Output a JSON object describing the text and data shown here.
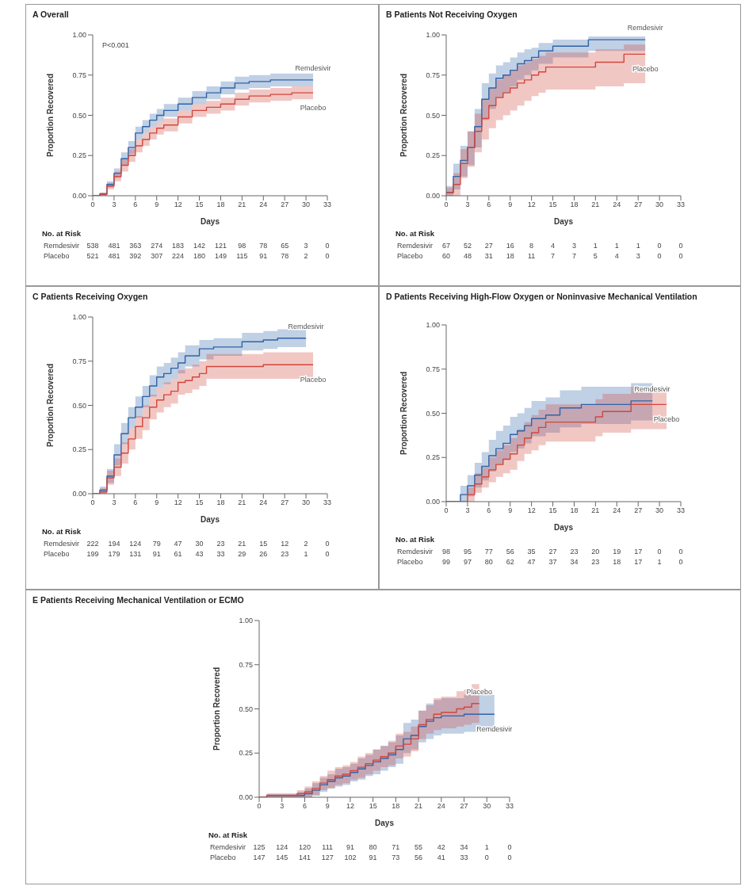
{
  "chart_data": [
    {
      "type": "step",
      "title": "A Overall",
      "xlabel": "Days",
      "ylabel": "Proportion Recovered",
      "xlim": [
        0,
        33
      ],
      "xticks": [
        0,
        3,
        6,
        9,
        12,
        15,
        18,
        21,
        24,
        27,
        30,
        33
      ],
      "ylim": [
        0,
        1
      ],
      "yticks": [
        {
          "value": 0,
          "label": "0.00"
        },
        {
          "value": 0.25,
          "label": "0.25"
        },
        {
          "value": 0.5,
          "label": "0.50"
        },
        {
          "value": 0.75,
          "label": "0.75"
        },
        {
          "value": 1,
          "label": "1.00"
        }
      ],
      "annotations": [
        "P<0.001",
        "No. at Risk",
        "Remdesivir 538 481 363 274 183 142 121 98 78 65 3 0",
        "Placebo 521 481 392 307 224 180 149 115 91 78 2 0"
      ],
      "series": [
        {
          "name": "Remdesivir",
          "color": "#2f63a8",
          "x": [
            0,
            1,
            2,
            3,
            4,
            5,
            6,
            7,
            8,
            9,
            10,
            12,
            14,
            16,
            18,
            20,
            22,
            25,
            28,
            31
          ],
          "values": [
            0,
            0.01,
            0.07,
            0.14,
            0.23,
            0.3,
            0.39,
            0.43,
            0.47,
            0.5,
            0.53,
            0.57,
            0.61,
            0.64,
            0.67,
            0.7,
            0.71,
            0.72,
            0.72,
            0.72
          ],
          "lower": [
            0,
            0,
            0.05,
            0.11,
            0.19,
            0.26,
            0.35,
            0.39,
            0.43,
            0.46,
            0.49,
            0.53,
            0.57,
            0.6,
            0.63,
            0.66,
            0.67,
            0.68,
            0.68,
            0.68
          ],
          "upper": [
            0,
            0.02,
            0.09,
            0.17,
            0.27,
            0.34,
            0.43,
            0.47,
            0.51,
            0.54,
            0.57,
            0.61,
            0.65,
            0.68,
            0.71,
            0.74,
            0.75,
            0.76,
            0.76,
            0.76
          ]
        },
        {
          "name": "Placebo",
          "color": "#d2473c",
          "x": [
            0,
            1,
            2,
            3,
            4,
            5,
            6,
            7,
            8,
            9,
            10,
            12,
            14,
            16,
            18,
            20,
            22,
            25,
            28,
            31
          ],
          "values": [
            0,
            0.01,
            0.06,
            0.12,
            0.19,
            0.25,
            0.31,
            0.35,
            0.39,
            0.42,
            0.44,
            0.49,
            0.53,
            0.55,
            0.57,
            0.6,
            0.62,
            0.63,
            0.64,
            0.64
          ],
          "lower": [
            0,
            0,
            0.04,
            0.09,
            0.15,
            0.21,
            0.27,
            0.31,
            0.35,
            0.38,
            0.4,
            0.45,
            0.49,
            0.51,
            0.53,
            0.56,
            0.58,
            0.59,
            0.6,
            0.6
          ],
          "upper": [
            0,
            0.02,
            0.08,
            0.15,
            0.23,
            0.29,
            0.35,
            0.39,
            0.43,
            0.46,
            0.48,
            0.53,
            0.57,
            0.59,
            0.61,
            0.64,
            0.66,
            0.67,
            0.68,
            0.68
          ]
        }
      ]
    },
    {
      "type": "step",
      "title": "B Patients Not Receiving Oxygen",
      "xlabel": "Days",
      "ylabel": "Proportion Recovered",
      "xlim": [
        0,
        33
      ],
      "xticks": [
        0,
        3,
        6,
        9,
        12,
        15,
        18,
        21,
        24,
        27,
        30,
        33
      ],
      "ylim": [
        0,
        1
      ],
      "yticks": [
        {
          "value": 0,
          "label": "0.00"
        },
        {
          "value": 0.25,
          "label": "0.25"
        },
        {
          "value": 0.5,
          "label": "0.50"
        },
        {
          "value": 0.75,
          "label": "0.75"
        },
        {
          "value": 1,
          "label": "1.00"
        }
      ],
      "annotations": [
        "No. at Risk",
        "Remdesivir 67 52 27 16 8 4 3 1 1 1 0 0",
        "Placebo 60 48 31 18 11 7 7 5 4 3 0 0"
      ],
      "series": [
        {
          "name": "Remdesivir",
          "color": "#2f63a8",
          "x": [
            0,
            1,
            2,
            3,
            4,
            5,
            6,
            7,
            8,
            9,
            10,
            11,
            12,
            13,
            15,
            20,
            28
          ],
          "values": [
            0.02,
            0.12,
            0.22,
            0.3,
            0.43,
            0.6,
            0.67,
            0.73,
            0.75,
            0.78,
            0.82,
            0.84,
            0.86,
            0.9,
            0.93,
            0.97,
            0.97
          ],
          "lower": [
            0,
            0.04,
            0.12,
            0.19,
            0.3,
            0.47,
            0.54,
            0.61,
            0.64,
            0.68,
            0.72,
            0.75,
            0.78,
            0.82,
            0.86,
            0.9,
            0.9
          ],
          "upper": [
            0.06,
            0.2,
            0.31,
            0.4,
            0.54,
            0.7,
            0.76,
            0.81,
            0.83,
            0.86,
            0.89,
            0.91,
            0.92,
            0.95,
            0.97,
            0.99,
            0.99
          ]
        },
        {
          "name": "Placebo",
          "color": "#d2473c",
          "x": [
            0,
            1,
            2,
            3,
            4,
            5,
            6,
            7,
            8,
            9,
            10,
            11,
            12,
            13,
            14,
            21,
            25,
            28
          ],
          "values": [
            0.02,
            0.07,
            0.2,
            0.3,
            0.4,
            0.48,
            0.56,
            0.61,
            0.64,
            0.67,
            0.7,
            0.72,
            0.75,
            0.77,
            0.8,
            0.83,
            0.88,
            0.88
          ],
          "lower": [
            0,
            0,
            0.11,
            0.18,
            0.27,
            0.35,
            0.42,
            0.47,
            0.5,
            0.53,
            0.56,
            0.59,
            0.62,
            0.64,
            0.66,
            0.68,
            0.7,
            0.7
          ],
          "upper": [
            0.05,
            0.14,
            0.29,
            0.4,
            0.51,
            0.6,
            0.67,
            0.72,
            0.75,
            0.78,
            0.81,
            0.83,
            0.85,
            0.87,
            0.89,
            0.91,
            0.94,
            0.94
          ]
        }
      ]
    },
    {
      "type": "step",
      "title": "C Patients Receiving Oxygen",
      "xlabel": "Days",
      "ylabel": "Proportion Recovered",
      "xlim": [
        0,
        33
      ],
      "xticks": [
        0,
        3,
        6,
        9,
        12,
        15,
        18,
        21,
        24,
        27,
        30,
        33
      ],
      "ylim": [
        0,
        1
      ],
      "yticks": [
        {
          "value": 0,
          "label": "0.00"
        },
        {
          "value": 0.25,
          "label": "0.25"
        },
        {
          "value": 0.5,
          "label": "0.50"
        },
        {
          "value": 0.75,
          "label": "0.75"
        },
        {
          "value": 1,
          "label": "1.00"
        }
      ],
      "annotations": [
        "No. at Risk",
        "Remdesivir 222 194 124 79 47 30 23 21 15 12 2 0",
        "Placebo 199 179 131 91 61 43 33 29 26 23 1 0"
      ],
      "series": [
        {
          "name": "Remdesivir",
          "color": "#2f63a8",
          "x": [
            0,
            1,
            2,
            3,
            4,
            5,
            6,
            7,
            8,
            9,
            10,
            11,
            12,
            13,
            15,
            17,
            21,
            24,
            26,
            30
          ],
          "values": [
            0,
            0.02,
            0.1,
            0.22,
            0.34,
            0.43,
            0.49,
            0.55,
            0.61,
            0.66,
            0.68,
            0.71,
            0.74,
            0.78,
            0.82,
            0.83,
            0.86,
            0.87,
            0.88,
            0.88
          ],
          "lower": [
            0,
            0,
            0.06,
            0.16,
            0.28,
            0.37,
            0.43,
            0.49,
            0.55,
            0.6,
            0.62,
            0.65,
            0.68,
            0.72,
            0.76,
            0.78,
            0.81,
            0.82,
            0.83,
            0.83
          ],
          "upper": [
            0,
            0.04,
            0.14,
            0.28,
            0.4,
            0.49,
            0.55,
            0.61,
            0.67,
            0.72,
            0.74,
            0.77,
            0.8,
            0.84,
            0.87,
            0.88,
            0.91,
            0.92,
            0.93,
            0.93
          ]
        },
        {
          "name": "Placebo",
          "color": "#d2473c",
          "x": [
            0,
            1,
            2,
            3,
            4,
            5,
            6,
            7,
            8,
            9,
            10,
            11,
            12,
            13,
            14,
            15,
            16,
            24,
            31
          ],
          "values": [
            0,
            0.01,
            0.09,
            0.15,
            0.23,
            0.31,
            0.38,
            0.43,
            0.49,
            0.53,
            0.56,
            0.58,
            0.63,
            0.64,
            0.66,
            0.68,
            0.72,
            0.73,
            0.73
          ],
          "lower": [
            0,
            0,
            0.05,
            0.1,
            0.17,
            0.25,
            0.31,
            0.36,
            0.42,
            0.46,
            0.49,
            0.51,
            0.56,
            0.57,
            0.59,
            0.61,
            0.65,
            0.65,
            0.65
          ],
          "upper": [
            0,
            0.03,
            0.13,
            0.2,
            0.29,
            0.37,
            0.44,
            0.5,
            0.56,
            0.6,
            0.63,
            0.65,
            0.7,
            0.71,
            0.73,
            0.75,
            0.79,
            0.8,
            0.8
          ]
        }
      ]
    },
    {
      "type": "step",
      "title": "D Patients Receiving High-Flow Oxygen or Noninvasive Mechanical Ventilation",
      "xlabel": "Days",
      "ylabel": "Proportion Recovered",
      "xlim": [
        0,
        33
      ],
      "xticks": [
        0,
        3,
        6,
        9,
        12,
        15,
        18,
        21,
        24,
        27,
        30,
        33
      ],
      "ylim": [
        0,
        1
      ],
      "yticks": [
        {
          "value": 0,
          "label": "0.00"
        },
        {
          "value": 0.25,
          "label": "0.25"
        },
        {
          "value": 0.5,
          "label": "0.50"
        },
        {
          "value": 0.75,
          "label": "0.75"
        },
        {
          "value": 1,
          "label": "1.00"
        }
      ],
      "annotations": [
        "No. at Risk",
        "Remdesivir 98 95 77 56 35 27 23 20 19 17 0 0",
        "Placebo 99 97 80 62 47 37 34 23 18 17 1 0"
      ],
      "series": [
        {
          "name": "Remdesivir",
          "color": "#2f63a8",
          "x": [
            0,
            2,
            3,
            4,
            5,
            6,
            7,
            8,
            9,
            10,
            11,
            12,
            14,
            16,
            19,
            26,
            29
          ],
          "values": [
            0,
            0.04,
            0.09,
            0.15,
            0.2,
            0.26,
            0.3,
            0.33,
            0.38,
            0.4,
            0.43,
            0.47,
            0.49,
            0.53,
            0.55,
            0.57,
            0.57
          ],
          "lower": [
            0,
            0,
            0.03,
            0.08,
            0.12,
            0.17,
            0.21,
            0.24,
            0.28,
            0.3,
            0.33,
            0.37,
            0.39,
            0.42,
            0.44,
            0.46,
            0.46
          ],
          "upper": [
            0,
            0.09,
            0.15,
            0.22,
            0.28,
            0.35,
            0.4,
            0.43,
            0.48,
            0.5,
            0.53,
            0.57,
            0.59,
            0.63,
            0.65,
            0.67,
            0.67
          ]
        },
        {
          "name": "Placebo",
          "color": "#d2473c",
          "x": [
            0,
            3,
            4,
            5,
            6,
            7,
            8,
            9,
            10,
            11,
            12,
            13,
            14,
            20,
            21,
            22,
            26,
            31
          ],
          "values": [
            0,
            0.04,
            0.1,
            0.14,
            0.18,
            0.21,
            0.24,
            0.27,
            0.32,
            0.36,
            0.39,
            0.42,
            0.45,
            0.45,
            0.48,
            0.51,
            0.55,
            0.55
          ],
          "lower": [
            0,
            0,
            0.05,
            0.08,
            0.11,
            0.14,
            0.16,
            0.18,
            0.23,
            0.27,
            0.29,
            0.32,
            0.34,
            0.34,
            0.37,
            0.39,
            0.41,
            0.41
          ],
          "upper": [
            0,
            0.08,
            0.16,
            0.2,
            0.25,
            0.29,
            0.32,
            0.36,
            0.41,
            0.45,
            0.49,
            0.52,
            0.55,
            0.55,
            0.58,
            0.61,
            0.65,
            0.65
          ]
        }
      ]
    },
    {
      "type": "step",
      "title": "E Patients Receiving Mechanical Ventilation or ECMO",
      "xlabel": "Days",
      "ylabel": "Proportion Recovered",
      "xlim": [
        0,
        33
      ],
      "xticks": [
        0,
        3,
        6,
        9,
        12,
        15,
        18,
        21,
        24,
        27,
        30,
        33
      ],
      "ylim": [
        0,
        1
      ],
      "yticks": [
        {
          "value": 0,
          "label": "0.00"
        },
        {
          "value": 0.25,
          "label": "0.25"
        },
        {
          "value": 0.5,
          "label": "0.50"
        },
        {
          "value": 0.75,
          "label": "0.75"
        },
        {
          "value": 1,
          "label": "1.00"
        }
      ],
      "annotations": [
        "No. at Risk",
        "Remdesivir 125 124 120 111 91 80 71 55 42 34 1 0",
        "Placebo 147 145 141 127 102 91 73 56 41 33 0 0"
      ],
      "series": [
        {
          "name": "Remdesivir",
          "color": "#2f63a8",
          "x": [
            0,
            1,
            5,
            6,
            7,
            8,
            9,
            10,
            11,
            12,
            13,
            14,
            15,
            16,
            17,
            18,
            19,
            20,
            21,
            22,
            23,
            24,
            27,
            31
          ],
          "values": [
            0,
            0.01,
            0.01,
            0.02,
            0.04,
            0.07,
            0.09,
            0.11,
            0.12,
            0.14,
            0.16,
            0.18,
            0.2,
            0.22,
            0.24,
            0.27,
            0.33,
            0.35,
            0.4,
            0.43,
            0.45,
            0.46,
            0.47,
            0.47
          ],
          "lower": [
            0,
            0,
            0,
            0,
            0.01,
            0.03,
            0.05,
            0.06,
            0.07,
            0.09,
            0.1,
            0.12,
            0.13,
            0.15,
            0.17,
            0.19,
            0.25,
            0.27,
            0.31,
            0.33,
            0.35,
            0.36,
            0.37,
            0.37
          ],
          "upper": [
            0,
            0.02,
            0.03,
            0.05,
            0.08,
            0.11,
            0.13,
            0.16,
            0.17,
            0.19,
            0.22,
            0.24,
            0.27,
            0.29,
            0.31,
            0.35,
            0.42,
            0.44,
            0.49,
            0.53,
            0.55,
            0.56,
            0.58,
            0.58
          ]
        },
        {
          "name": "Placebo",
          "color": "#d2473c",
          "x": [
            0,
            1,
            5,
            6,
            7,
            8,
            9,
            10,
            11,
            12,
            13,
            14,
            15,
            16,
            17,
            18,
            19,
            20,
            21,
            22,
            23,
            24,
            26,
            27,
            28,
            29
          ],
          "values": [
            0,
            0.01,
            0.02,
            0.03,
            0.05,
            0.08,
            0.1,
            0.12,
            0.13,
            0.15,
            0.17,
            0.19,
            0.21,
            0.23,
            0.25,
            0.29,
            0.3,
            0.33,
            0.41,
            0.44,
            0.47,
            0.48,
            0.5,
            0.51,
            0.53,
            0.53
          ],
          "lower": [
            0,
            0,
            0,
            0,
            0.01,
            0.04,
            0.05,
            0.07,
            0.08,
            0.1,
            0.11,
            0.13,
            0.15,
            0.17,
            0.18,
            0.22,
            0.23,
            0.26,
            0.33,
            0.36,
            0.38,
            0.39,
            0.4,
            0.41,
            0.42,
            0.42
          ],
          "upper": [
            0,
            0.02,
            0.04,
            0.06,
            0.09,
            0.12,
            0.15,
            0.17,
            0.18,
            0.2,
            0.23,
            0.25,
            0.27,
            0.29,
            0.32,
            0.36,
            0.37,
            0.4,
            0.49,
            0.52,
            0.56,
            0.57,
            0.6,
            0.61,
            0.64,
            0.64
          ]
        }
      ]
    }
  ]
}
